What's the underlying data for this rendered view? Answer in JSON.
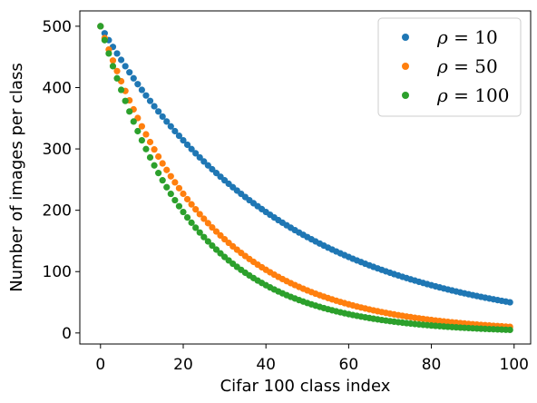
{
  "chart_data": {
    "type": "scatter",
    "title": "",
    "xlabel": "Cifar 100 class index",
    "ylabel": "Number of images per class",
    "xlim": [
      -5,
      104
    ],
    "ylim": [
      -18,
      525
    ],
    "x_ticks": [
      0,
      20,
      40,
      60,
      80,
      100
    ],
    "y_ticks": [
      0,
      100,
      200,
      300,
      400,
      500
    ],
    "grid": false,
    "legend_position": "top-right",
    "n_classes": 100,
    "n_max": 500,
    "series": [
      {
        "name": "ρ = 10",
        "symbol": "ρ",
        "eq": " = ",
        "rho": "10",
        "imbalance_ratio": 10,
        "color": "#1f77b4"
      },
      {
        "name": "ρ = 50",
        "symbol": "ρ",
        "eq": " = ",
        "rho": "50",
        "imbalance_ratio": 50,
        "color": "#ff7f0e"
      },
      {
        "name": "ρ = 100",
        "symbol": "ρ",
        "eq": " = ",
        "rho": "100",
        "imbalance_ratio": 100,
        "color": "#2ca02c"
      }
    ]
  }
}
